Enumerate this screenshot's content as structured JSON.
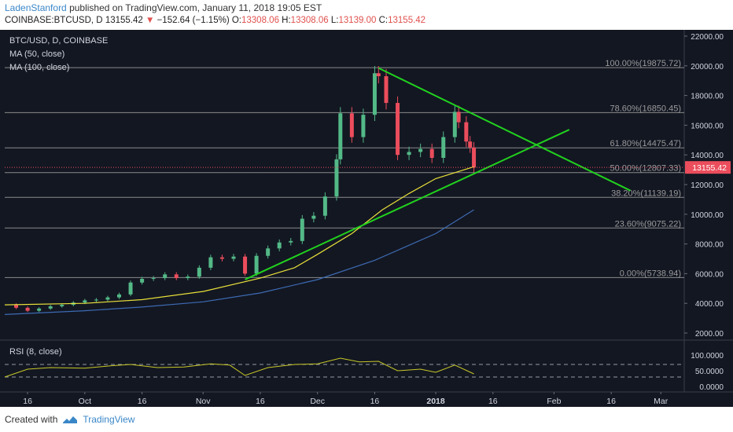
{
  "header": {
    "author": "LadenStanford",
    "published_text": "published on TradingView.com, January 11, 2018 19:05 EST",
    "symbol_text": "COINBASE:BTCUSD, D",
    "last_price": "13155.42",
    "change_arrow": "▼",
    "change_text": "−152.64 (−1.15%)",
    "o_label": "O:",
    "o_val": "13308.06",
    "h_label": "H:",
    "h_val": "13308.06",
    "l_label": "L:",
    "l_val": "13139.00",
    "c_label": "C:",
    "c_val": "13155.42"
  },
  "legend": {
    "title": "BTC/USD, D, COINBASE",
    "ma50": "MA (50, close)",
    "ma100": "MA (100, close)",
    "rsi": "RSI (8, close)"
  },
  "footer": {
    "created_with": "Created with",
    "brand": "TradingView"
  },
  "colors": {
    "background": "#131722",
    "up": "#53b987",
    "down": "#eb4d5c",
    "ma50": "#e8e03a",
    "ma100": "#3d6bb3",
    "trend": "#21d11e",
    "fib": "#8a8a8a",
    "rsi": "#c8c828",
    "price_tag": "#eb4d5c"
  },
  "chart_data": {
    "type": "candlestick",
    "y_axis": {
      "min": 2000,
      "max": 22000,
      "ticks": [
        "22000.00",
        "20000.00",
        "18000.00",
        "16000.00",
        "14000.00",
        "12000.00",
        "10000.00",
        "8000.00",
        "6000.00",
        "4000.00",
        "2000.00"
      ]
    },
    "x_axis": {
      "ticks": [
        "16",
        "Oct",
        "16",
        "Nov",
        "16",
        "Dec",
        "16",
        "2018",
        "16",
        "Feb",
        "16",
        "Mar"
      ],
      "tick_dates": [
        "2017-09-16",
        "2017-10-01",
        "2017-10-16",
        "2017-11-01",
        "2017-11-16",
        "2017-12-01",
        "2017-12-16",
        "2018-01-01",
        "2018-01-16",
        "2018-02-01",
        "2018-02-16",
        "2018-03-01"
      ]
    },
    "last_price_tag": "13155.42",
    "fib_levels": [
      {
        "label": "100.00%(19875.72)",
        "value": 19875.72
      },
      {
        "label": "78.60%(16850.45)",
        "value": 16850.45
      },
      {
        "label": "61.80%(14475.47)",
        "value": 14475.47
      },
      {
        "label": "50.00%(12807.33)",
        "value": 12807.33
      },
      {
        "label": "38.20%(11139.19)",
        "value": 11139.19
      },
      {
        "label": "23.60%(9075.22)",
        "value": 9075.22
      },
      {
        "label": "0.00%(5738.94)",
        "value": 5738.94
      }
    ],
    "trendlines": [
      {
        "from": [
          "2017-11-12",
          5600
        ],
        "to": [
          "2018-02-05",
          15700
        ]
      },
      {
        "from": [
          "2017-12-17",
          19850
        ],
        "to": [
          "2018-02-21",
          11600
        ]
      }
    ],
    "close": [
      [
        "2017-09-10",
        3900
      ],
      [
        "2017-09-13",
        3700
      ],
      [
        "2017-09-16",
        3500
      ],
      [
        "2017-09-19",
        3650
      ],
      [
        "2017-09-22",
        3800
      ],
      [
        "2017-09-25",
        3900
      ],
      [
        "2017-09-28",
        4050
      ],
      [
        "2017-10-01",
        4200
      ],
      [
        "2017-10-04",
        4250
      ],
      [
        "2017-10-07",
        4400
      ],
      [
        "2017-10-10",
        4600
      ],
      [
        "2017-10-13",
        5400
      ],
      [
        "2017-10-16",
        5650
      ],
      [
        "2017-10-19",
        5700
      ],
      [
        "2017-10-22",
        5950
      ],
      [
        "2017-10-25",
        5700
      ],
      [
        "2017-10-28",
        5800
      ],
      [
        "2017-10-31",
        6400
      ],
      [
        "2017-11-03",
        7100
      ],
      [
        "2017-11-06",
        7000
      ],
      [
        "2017-11-09",
        7150
      ],
      [
        "2017-11-12",
        6000
      ],
      [
        "2017-11-15",
        7200
      ],
      [
        "2017-11-18",
        7700
      ],
      [
        "2017-11-21",
        8100
      ],
      [
        "2017-11-24",
        8200
      ],
      [
        "2017-11-27",
        9700
      ],
      [
        "2017-11-30",
        9900
      ],
      [
        "2017-12-03",
        11200
      ],
      [
        "2017-12-06",
        13700
      ],
      [
        "2017-12-07",
        16800
      ],
      [
        "2017-12-10",
        15200
      ],
      [
        "2017-12-13",
        16700
      ],
      [
        "2017-12-16",
        19500
      ],
      [
        "2017-12-17",
        19300
      ],
      [
        "2017-12-19",
        17500
      ],
      [
        "2017-12-22",
        14000
      ],
      [
        "2017-12-25",
        14200
      ],
      [
        "2017-12-28",
        14400
      ],
      [
        "2017-12-31",
        13800
      ],
      [
        "2018-01-03",
        15200
      ],
      [
        "2018-01-06",
        16900
      ],
      [
        "2018-01-07",
        16200
      ],
      [
        "2018-01-09",
        14900
      ],
      [
        "2018-01-10",
        14500
      ],
      [
        "2018-01-11",
        13155
      ]
    ],
    "ma50": [
      [
        "2017-09-10",
        3900
      ],
      [
        "2017-10-01",
        4000
      ],
      [
        "2017-10-16",
        4250
      ],
      [
        "2017-11-01",
        4800
      ],
      [
        "2017-11-16",
        5700
      ],
      [
        "2017-11-25",
        6400
      ],
      [
        "2017-12-01",
        7300
      ],
      [
        "2017-12-10",
        8700
      ],
      [
        "2017-12-18",
        10300
      ],
      [
        "2017-12-25",
        11400
      ],
      [
        "2018-01-01",
        12400
      ],
      [
        "2018-01-11",
        13200
      ]
    ],
    "ma100": [
      [
        "2017-09-10",
        3250
      ],
      [
        "2017-10-01",
        3500
      ],
      [
        "2017-10-16",
        3750
      ],
      [
        "2017-11-01",
        4100
      ],
      [
        "2017-11-16",
        4700
      ],
      [
        "2017-12-01",
        5600
      ],
      [
        "2017-12-16",
        6900
      ],
      [
        "2018-01-01",
        8700
      ],
      [
        "2018-01-11",
        10300
      ]
    ],
    "rsi": {
      "y_ticks": [
        "100.0000",
        "50.0000",
        "0.0000"
      ],
      "bands": [
        70,
        30
      ],
      "values": [
        [
          "2017-09-10",
          30
        ],
        [
          "2017-09-16",
          55
        ],
        [
          "2017-09-22",
          60
        ],
        [
          "2017-10-01",
          58
        ],
        [
          "2017-10-08",
          66
        ],
        [
          "2017-10-13",
          70
        ],
        [
          "2017-10-20",
          60
        ],
        [
          "2017-10-27",
          62
        ],
        [
          "2017-11-03",
          72
        ],
        [
          "2017-11-08",
          68
        ],
        [
          "2017-11-12",
          35
        ],
        [
          "2017-11-18",
          60
        ],
        [
          "2017-11-25",
          70
        ],
        [
          "2017-12-01",
          72
        ],
        [
          "2017-12-07",
          90
        ],
        [
          "2017-12-12",
          78
        ],
        [
          "2017-12-17",
          80
        ],
        [
          "2017-12-22",
          50
        ],
        [
          "2017-12-28",
          55
        ],
        [
          "2018-01-01",
          45
        ],
        [
          "2018-01-06",
          68
        ],
        [
          "2018-01-11",
          40
        ]
      ]
    }
  }
}
